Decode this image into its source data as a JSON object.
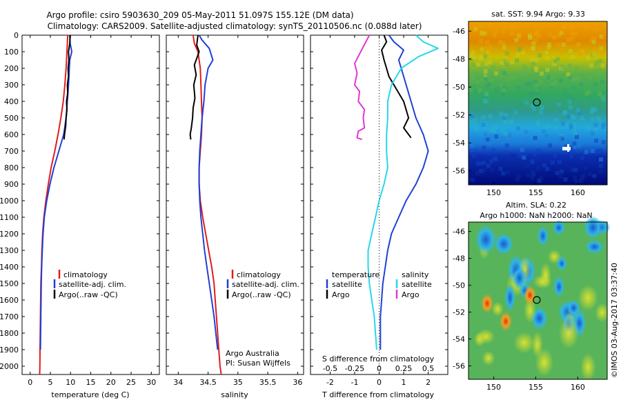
{
  "title_line1": "Argo profile: csiro 5903630_209 05-May-2011 51.097S 155.12E (DM data)",
  "title_line2": "Climatology: CARS2009. Satellite-adjusted climatology: synTS_20110506.nc (0.088d later)",
  "side_label": "©IMOS 03-Aug-2017 03:37:40",
  "colors": {
    "climatology": "#e31a1c",
    "satellite": "#1f3fd6",
    "argo": "#000000",
    "satellite_s": "#25d8e8",
    "argo_s": "#e234d6"
  },
  "chart_data": [
    {
      "type": "line",
      "xlabel": "temperature (deg C)",
      "ylabel": "",
      "xlim": [
        -2,
        32
      ],
      "ylim": [
        2050,
        0
      ],
      "xticks": [
        "0",
        "5",
        "10",
        "15",
        "20",
        "25",
        "30"
      ],
      "yticks": [
        "0",
        "100",
        "200",
        "300",
        "400",
        "500",
        "600",
        "700",
        "800",
        "900",
        "1000",
        "1100",
        "1200",
        "1300",
        "1400",
        "1500",
        "1600",
        "1700",
        "1800",
        "1900",
        "2000"
      ],
      "legend": [
        "climatology",
        "satellite-adj. clim.",
        "Argo(..raw -QC)"
      ],
      "legend_position": "lower-right",
      "series": [
        {
          "name": "climatology",
          "color": "#e31a1c",
          "x": [
            9.3,
            9.2,
            9.1,
            8.9,
            8.6,
            8.2,
            7.6,
            6.9,
            6.1,
            5.2,
            4.5,
            3.9,
            3.4,
            3.1,
            2.9,
            2.8,
            2.65,
            2.6,
            2.55,
            2.5,
            2.45,
            2.4,
            2.35
          ],
          "y": [
            0,
            50,
            100,
            200,
            300,
            400,
            500,
            600,
            700,
            800,
            900,
            1000,
            1100,
            1200,
            1300,
            1400,
            1500,
            1600,
            1700,
            1800,
            1900,
            2000,
            2050
          ]
        },
        {
          "name": "satellite-adj. clim.",
          "color": "#1f3fd6",
          "x": [
            9.8,
            9.9,
            10.3,
            9.8,
            9.7,
            9.5,
            9.2,
            8.9,
            8.3,
            7.1,
            5.9,
            4.9,
            4.1,
            3.5,
            3.2,
            3.0,
            2.85,
            2.75,
            2.7,
            2.65,
            2.6,
            2.55
          ],
          "y": [
            0,
            50,
            100,
            150,
            200,
            300,
            400,
            500,
            600,
            700,
            800,
            900,
            1000,
            1100,
            1200,
            1300,
            1400,
            1500,
            1600,
            1700,
            1800,
            1900
          ]
        },
        {
          "name": "Argo(..raw -QC)",
          "color": "#000000",
          "x": [
            9.9,
            9.8,
            9.5,
            9.6,
            9.4,
            9.5,
            9.2,
            9.3,
            9.0,
            9.1,
            8.9,
            8.8,
            8.5,
            8.4
          ],
          "y": [
            0,
            50,
            100,
            150,
            200,
            250,
            300,
            350,
            400,
            450,
            500,
            550,
            600,
            630
          ]
        }
      ]
    },
    {
      "type": "line",
      "xlabel": "salinity",
      "ylabel": "",
      "xlim": [
        33.8,
        36.1
      ],
      "ylim": [
        2050,
        0
      ],
      "xticks": [
        "34",
        "34.5",
        "35",
        "35.5",
        "36"
      ],
      "legend": [
        "climatology",
        "satellite-adj. clim.",
        "Argo(..raw -QC)"
      ],
      "legend_position": "lower-right",
      "annotation": [
        "Argo Australia",
        "PI: Susan Wijffels"
      ],
      "series": [
        {
          "name": "climatology",
          "color": "#e31a1c",
          "x": [
            34.25,
            34.27,
            34.33,
            34.37,
            34.38,
            34.39,
            34.4,
            34.39,
            34.37,
            34.35,
            34.35,
            34.37,
            34.41,
            34.46,
            34.51,
            34.56,
            34.6,
            34.62,
            34.64,
            34.66,
            34.68,
            34.7,
            34.72
          ],
          "y": [
            0,
            50,
            100,
            200,
            300,
            400,
            500,
            600,
            700,
            800,
            900,
            1000,
            1100,
            1200,
            1300,
            1400,
            1500,
            1600,
            1700,
            1800,
            1900,
            2000,
            2050
          ]
        },
        {
          "name": "satellite-adj. clim.",
          "color": "#1f3fd6",
          "x": [
            34.35,
            34.4,
            34.52,
            34.58,
            34.5,
            34.45,
            34.43,
            34.4,
            34.38,
            34.36,
            34.35,
            34.35,
            34.36,
            34.38,
            34.41,
            34.44,
            34.48,
            34.52,
            34.56,
            34.6,
            34.63,
            34.66
          ],
          "y": [
            0,
            30,
            80,
            150,
            200,
            300,
            400,
            500,
            600,
            700,
            800,
            900,
            1000,
            1100,
            1200,
            1300,
            1400,
            1500,
            1600,
            1700,
            1800,
            1900
          ]
        },
        {
          "name": "Argo(..raw -QC)",
          "color": "#000000",
          "x": [
            34.33,
            34.31,
            34.35,
            34.27,
            34.3,
            34.26,
            34.28,
            34.25,
            34.24,
            34.22,
            34.2,
            34.21
          ],
          "y": [
            0,
            60,
            100,
            180,
            240,
            300,
            380,
            440,
            500,
            560,
            600,
            630
          ]
        }
      ]
    },
    {
      "type": "line",
      "xlabel": "T difference from climatology",
      "xlabel2": "S difference from climatology",
      "xlim": [
        -2.8,
        2.8
      ],
      "ylim": [
        2050,
        0
      ],
      "xticks": [
        "-2",
        "-1",
        "0",
        "1",
        "2"
      ],
      "xticks2": [
        "-0.5",
        "-0.25",
        "0",
        "0.25",
        "0.5"
      ],
      "legend_groups": [
        {
          "title": "temperature",
          "items": [
            "satellite",
            "Argo"
          ]
        },
        {
          "title": "salinity",
          "items": [
            "satellite",
            "Argo"
          ]
        }
      ],
      "legend_position": "lower-right",
      "series": [
        {
          "name": "temperature satellite",
          "color": "#1f3fd6",
          "x": [
            0.4,
            0.6,
            1.0,
            0.8,
            0.9,
            1.1,
            1.3,
            1.5,
            1.8,
            2.0,
            1.8,
            1.5,
            1.1,
            0.8,
            0.5,
            0.35,
            0.25,
            0.15,
            0.1,
            0.05,
            0.05,
            0.05
          ],
          "y": [
            0,
            40,
            90,
            150,
            200,
            300,
            400,
            500,
            600,
            700,
            800,
            900,
            1000,
            1100,
            1200,
            1300,
            1400,
            1500,
            1600,
            1700,
            1800,
            1900
          ]
        },
        {
          "name": "temperature Argo",
          "color": "#000000",
          "x": [
            0.2,
            0.3,
            0.1,
            0.2,
            0.3,
            0.4,
            0.6,
            0.8,
            1.0,
            1.1,
            1.2,
            1.0,
            1.3
          ],
          "y": [
            0,
            40,
            90,
            150,
            200,
            250,
            300,
            350,
            400,
            450,
            500,
            560,
            620
          ]
        },
        {
          "name": "salinity satellite",
          "color": "#25d8e8",
          "x": [
            1.5,
            1.8,
            2.4,
            1.6,
            0.9,
            0.5,
            0.35,
            0.35,
            0.3,
            0.3,
            0.35,
            0.2,
            0.0,
            -0.15,
            -0.3,
            -0.45,
            -0.45,
            -0.4,
            -0.3,
            -0.2,
            -0.1
          ],
          "y": [
            0,
            40,
            80,
            130,
            200,
            300,
            400,
            500,
            600,
            700,
            800,
            900,
            1000,
            1100,
            1200,
            1300,
            1400,
            1500,
            1600,
            1700,
            1900
          ]
        },
        {
          "name": "salinity Argo",
          "color": "#e234d6",
          "x": [
            -0.4,
            -1.0,
            -0.9,
            -1.0,
            -0.8,
            -0.85,
            -0.6,
            -0.65,
            -0.6,
            -0.85,
            -0.9,
            -0.7
          ],
          "y": [
            0,
            170,
            230,
            300,
            340,
            400,
            450,
            500,
            560,
            580,
            620,
            630
          ]
        }
      ]
    },
    {
      "type": "heatmap",
      "title": "sat. SST: 9.94  Argo: 9.33",
      "xlim": [
        147,
        163.5
      ],
      "ylim": [
        -57,
        -45.3
      ],
      "xticks": [
        "150",
        "155",
        "160"
      ],
      "yticks": [
        "-46",
        "-48",
        "-50",
        "-52",
        "-54",
        "-56"
      ],
      "argo_position": [
        155.12,
        -51.097
      ]
    },
    {
      "type": "heatmap",
      "title": "Altim. SLA: 0.22",
      "subtitle": "Argo h1000: NaN h2000: NaN",
      "xlim": [
        147,
        163.5
      ],
      "ylim": [
        -57,
        -45.3
      ],
      "xticks": [
        "150",
        "155",
        "160"
      ],
      "yticks": [
        "-46",
        "-48",
        "-50",
        "-52",
        "-54",
        "-56"
      ],
      "argo_position": [
        155.12,
        -51.097
      ]
    }
  ]
}
